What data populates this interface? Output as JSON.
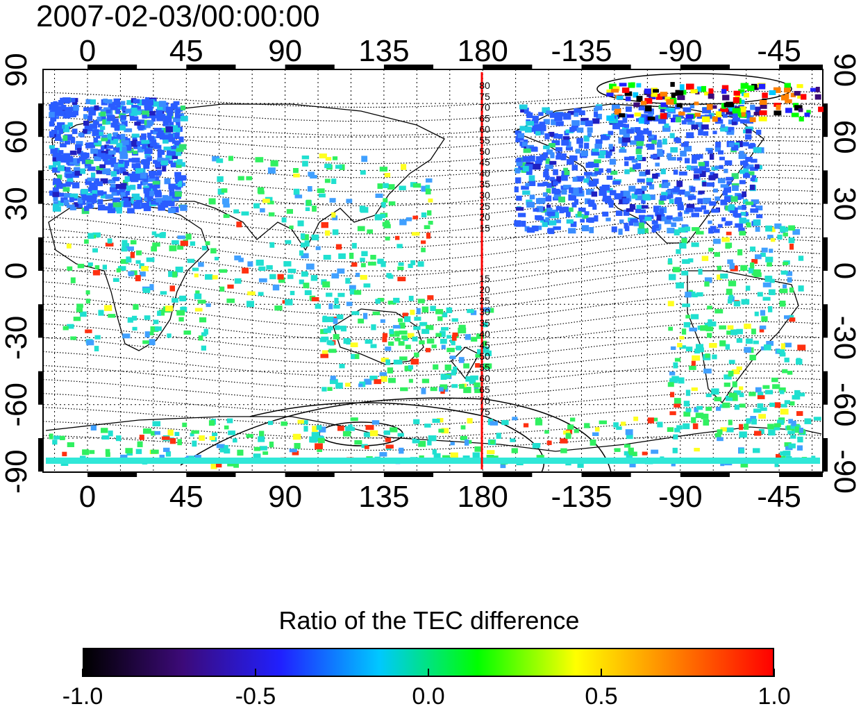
{
  "title": "2007-02-03/00:00:00",
  "map": {
    "top_lon_labels": [
      "0",
      "45",
      "90",
      "135",
      "180",
      "-135",
      "-90",
      "-45"
    ],
    "bottom_lon_labels": [
      "0",
      "45",
      "90",
      "135",
      "180",
      "-135",
      "-90",
      "-45"
    ],
    "left_lat_labels": [
      "90",
      "60",
      "30",
      "0",
      "-30",
      "-60",
      "-90"
    ],
    "right_lat_labels": [
      "90",
      "60",
      "30",
      "0",
      "-30",
      "-60",
      "-90"
    ],
    "contour_labels_north": [
      "80",
      "75",
      "70",
      "65",
      "60",
      "55",
      "50",
      "45",
      "40",
      "35",
      "30",
      "25",
      "20",
      "15"
    ],
    "contour_labels_south": [
      "15",
      "20",
      "25",
      "30",
      "35",
      "40",
      "45",
      "50",
      "55",
      "60",
      "65",
      "70",
      "75"
    ],
    "meridian_line_color": "#ff0000"
  },
  "colorbar": {
    "title": "Ratio of the TEC difference",
    "min": -1.0,
    "max": 1.0,
    "ticks": [
      "-1.0",
      "-0.5",
      "0.0",
      "0.5",
      "1.0"
    ],
    "colors": [
      "#000000",
      "#3c0a78",
      "#2020ff",
      "#00c8ff",
      "#00ff00",
      "#ffff00",
      "#ff8000",
      "#ff0000"
    ]
  }
}
